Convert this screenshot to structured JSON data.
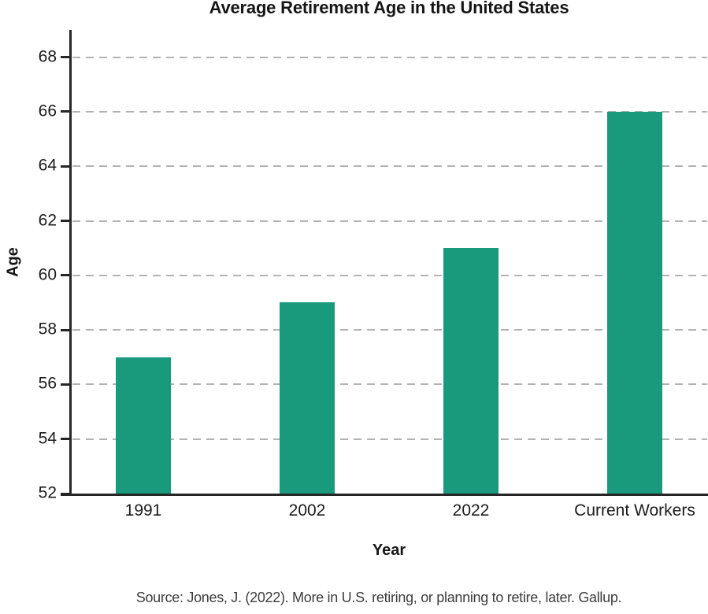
{
  "page": {
    "background": "#ffffff"
  },
  "chart_data": {
    "type": "bar",
    "title": "Average Retirement Age in the United States",
    "categories": [
      "1991",
      "2002",
      "2022",
      "Current Workers"
    ],
    "values": [
      57,
      59,
      61,
      66
    ],
    "xlabel": "Year",
    "ylabel": "Age",
    "ylim": [
      52,
      69
    ],
    "yticks": [
      52,
      54,
      56,
      58,
      60,
      62,
      64,
      66,
      68
    ],
    "grid": "horizontal-dashed",
    "legend": "none",
    "bar_color": "#1a9a7c",
    "axis_color": "#262626",
    "gridline_color": "#b3b3b3",
    "source": "Source: Jones, J. (2022). More in U.S. retiring, or planning to retire, later. Gallup."
  }
}
